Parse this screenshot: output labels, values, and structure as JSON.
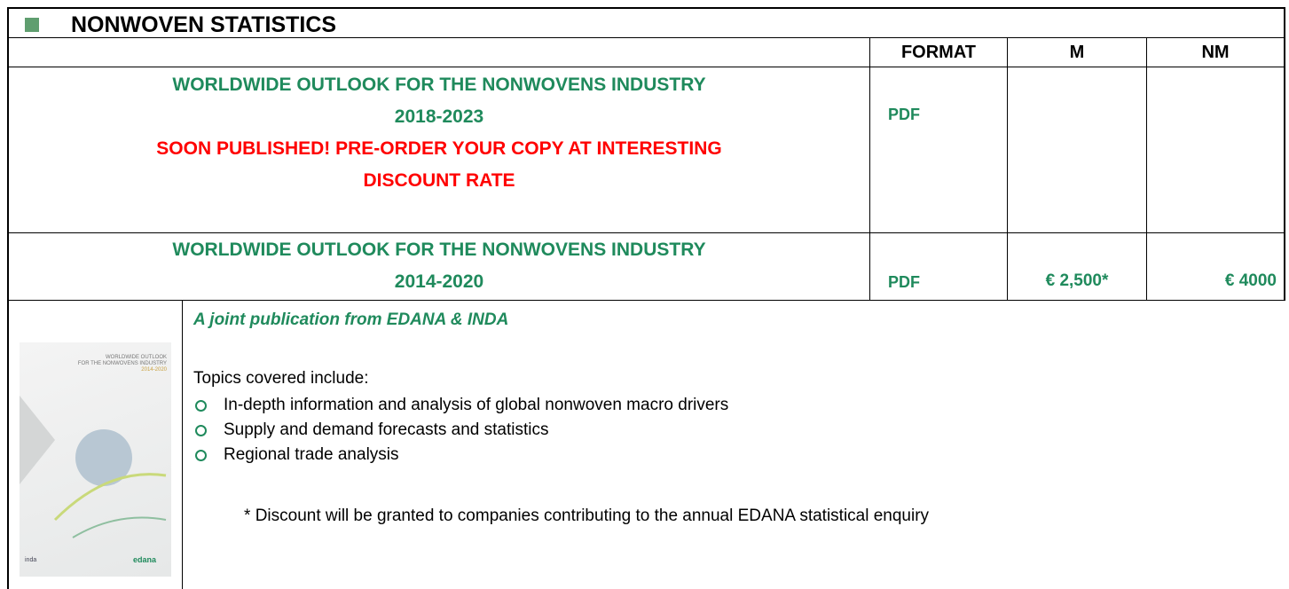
{
  "header": {
    "title": "NONWOVEN STATISTICS"
  },
  "table": {
    "columns": [
      "FORMAT",
      "M",
      "NM"
    ],
    "rows": [
      {
        "title": [
          "WORLDWIDE OUTLOOK FOR THE NONWOVENS INDUSTRY",
          "2018-2023"
        ],
        "notice": [
          "SOON PUBLISHED! PRE-ORDER YOUR COPY AT INTERESTING",
          "DISCOUNT RATE"
        ],
        "format": "PDF"
      },
      {
        "title": [
          "WORLDWIDE OUTLOOK FOR THE NONWOVENS INDUSTRY",
          "2014-2020"
        ],
        "format": "PDF",
        "m": "€ 2,500*",
        "nm": "€ 4000"
      }
    ]
  },
  "description": {
    "cover": {
      "title": [
        "WORLDWIDE OUTLOOK",
        "FOR THE NONWOVENS INDUSTRY"
      ],
      "years": "2014-2020",
      "logos": [
        "inda",
        "edana"
      ]
    },
    "tagline": "A joint publication from EDANA & INDA",
    "intro": "Topics covered include:",
    "topics": [
      "In-depth information and analysis of global nonwoven macro drivers",
      "Supply and demand forecasts and statistics",
      "Regional trade analysis"
    ],
    "footnote_mark": "*",
    "footnote": "Discount will be granted to companies contributing to the annual EDANA statistical enquiry"
  }
}
